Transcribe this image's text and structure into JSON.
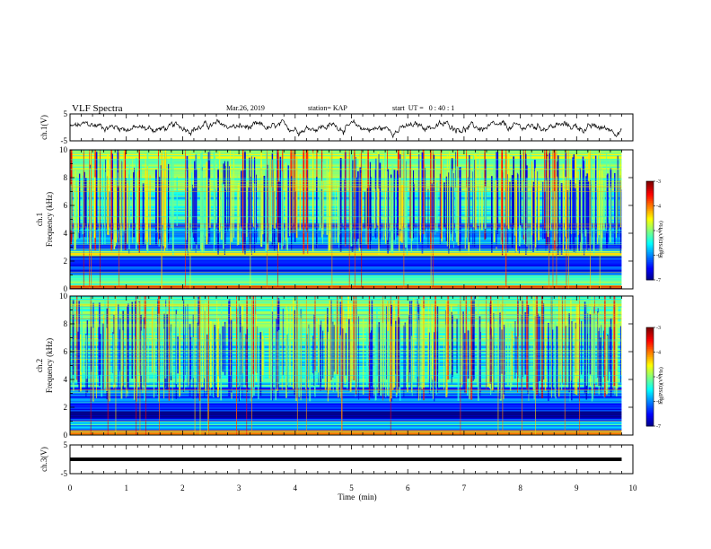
{
  "header": {
    "title": "VLF Spectra",
    "date": "Mar.26, 2019",
    "station": "station= KAP",
    "start": "start  UT =   0 : 40 : 1"
  },
  "chart_data": [
    {
      "type": "line",
      "ylabel": "ch.1(V)",
      "ylim": [
        -5,
        5
      ],
      "yticks": [
        5,
        -5
      ],
      "xlim": [
        0,
        10
      ],
      "x_end": 9.8,
      "baseline": 0,
      "noise_amplitude": 1.2,
      "color": "#000000"
    },
    {
      "type": "heatmap",
      "ylabel_prefix": "ch.1",
      "ylabel": "Frequency (kHz)",
      "ylim": [
        0,
        10
      ],
      "yticks": [
        "0",
        "2",
        "4",
        "6",
        "8",
        "10"
      ],
      "xlim": [
        0,
        10
      ],
      "x_end": 9.8,
      "colorbar": {
        "label": "log(PSD)(V²/Hz)",
        "ticks": [
          "-3",
          "-4",
          "-5",
          "-6",
          "-7"
        ],
        "range": [
          -7,
          -3
        ]
      },
      "bands": [
        {
          "f": [
            0,
            0.3
          ],
          "level": -3.6
        },
        {
          "f": [
            0.3,
            1.0
          ],
          "level": -5.2
        },
        {
          "f": [
            1.0,
            2.4
          ],
          "level": -6.4
        },
        {
          "f": [
            2.4,
            2.7
          ],
          "level": -4.6
        },
        {
          "f": [
            2.7,
            4.8
          ],
          "level": -6.0
        },
        {
          "f": [
            4.8,
            7.0
          ],
          "level": -5.4
        },
        {
          "f": [
            7.0,
            10.0
          ],
          "level": -4.9
        }
      ],
      "sferic_strength": 0.65
    },
    {
      "type": "heatmap",
      "ylabel_prefix": "ch.2",
      "ylabel": "Frequency (kHz)",
      "ylim": [
        0,
        10
      ],
      "yticks": [
        "0",
        "2",
        "4",
        "6",
        "8",
        "10"
      ],
      "xlim": [
        0,
        10
      ],
      "x_end": 9.8,
      "colorbar": {
        "label": "log(PSD)(V²/Hz)",
        "ticks": [
          "-3",
          "-4",
          "-5",
          "-6",
          "-7"
        ],
        "range": [
          -7,
          -3
        ]
      },
      "bands": [
        {
          "f": [
            0,
            0.4
          ],
          "level": -4.2
        },
        {
          "f": [
            0.4,
            1.0
          ],
          "level": -5.8
        },
        {
          "f": [
            1.0,
            2.0
          ],
          "level": -6.6
        },
        {
          "f": [
            2.0,
            3.5
          ],
          "level": -6.1
        },
        {
          "f": [
            3.5,
            6.5
          ],
          "level": -5.5
        },
        {
          "f": [
            6.5,
            10.0
          ],
          "level": -5.1
        }
      ],
      "sferic_strength": 0.5
    },
    {
      "type": "line",
      "ylabel": "ch.3(V)",
      "ylim": [
        -5,
        5
      ],
      "yticks": [
        5,
        -5
      ],
      "xlim": [
        0,
        10
      ],
      "x_end": 9.8,
      "baseline": 0,
      "noise_amplitude": 0,
      "color": "#000000"
    }
  ],
  "xaxis": {
    "label": "Time  (min)",
    "ticks": [
      "0",
      "1",
      "2",
      "3",
      "4",
      "5",
      "6",
      "7",
      "8",
      "9",
      "10"
    ]
  }
}
